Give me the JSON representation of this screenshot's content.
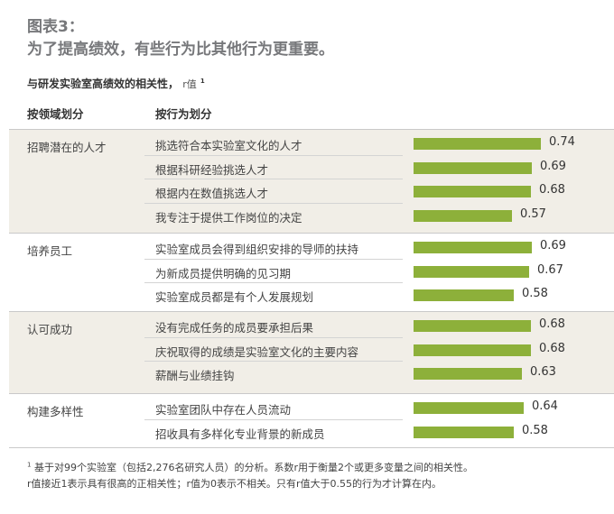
{
  "figure": {
    "label": "图表3：",
    "subtitle": "为了提高绩效，有些行为比其他行为更重要。"
  },
  "colors": {
    "bar": "#8db03a",
    "band": "#f1eee7",
    "white": "#ffffff"
  },
  "chart_data": {
    "type": "bar",
    "orientation": "horizontal",
    "title": "与研发实验室高绩效的相关性，",
    "unit": "r值",
    "title_footnote_mark": "1",
    "col_domain": "按领域划分",
    "col_behavior": "按行为划分",
    "xlim": [
      0,
      0.74
    ],
    "grid": false,
    "groups": [
      {
        "name": "招聘潜在的人才",
        "rows": [
          {
            "label": "挑选符合本实验室文化的人才",
            "value": 0.74,
            "value_text": "0.74"
          },
          {
            "label": "根据科研经验挑选人才",
            "value": 0.69,
            "value_text": "0.69"
          },
          {
            "label": "根据内在数值挑选人才",
            "value": 0.68,
            "value_text": "0.68"
          },
          {
            "label": "我专注于提供工作岗位的决定",
            "value": 0.57,
            "value_text": "0.57"
          }
        ]
      },
      {
        "name": "培养员工",
        "rows": [
          {
            "label": "实验室成员会得到组织安排的导师的扶持",
            "value": 0.69,
            "value_text": "0.69"
          },
          {
            "label": "为新成员提供明确的见习期",
            "value": 0.67,
            "value_text": "0.67"
          },
          {
            "label": "实验室成员都是有个人发展规划",
            "value": 0.58,
            "value_text": "0.58"
          }
        ]
      },
      {
        "name": "认可成功",
        "rows": [
          {
            "label": "没有完成任务的成员要承担后果",
            "value": 0.68,
            "value_text": "0.68"
          },
          {
            "label": "庆祝取得的成绩是实验室文化的主要内容",
            "value": 0.68,
            "value_text": "0.68"
          },
          {
            "label": "薪酬与业绩挂钩",
            "value": 0.63,
            "value_text": "0.63"
          }
        ]
      },
      {
        "name": "构建多样性",
        "rows": [
          {
            "label": "实验室团队中存在人员流动",
            "value": 0.64,
            "value_text": "0.64"
          },
          {
            "label": "招收具有多样化专业背景的新成员",
            "value": 0.58,
            "value_text": "0.58"
          }
        ]
      }
    ]
  },
  "footnotes": {
    "mark": "1",
    "line1": "基于对99个实验室（包括2,276名研究人员）的分析。系数r用于衡量2个或更多变量之间的相关性。",
    "line2": "r值接近1表示具有很高的正相关性；r值为0表示不相关。只有r值大于0.55的行为才计算在内。"
  }
}
